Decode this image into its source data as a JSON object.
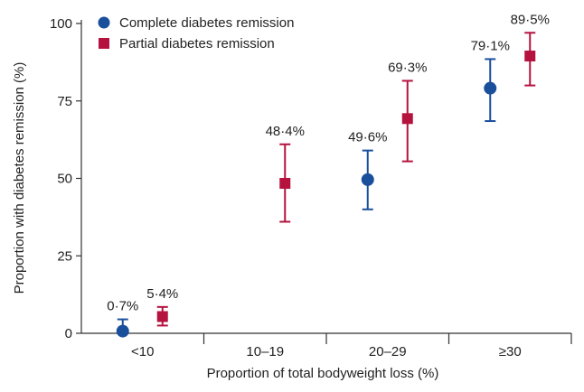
{
  "chart_data": {
    "type": "scatter",
    "title": "",
    "xlabel": "Proportion of total bodyweight loss (%)",
    "ylabel": "Proportion with diabetes remission (%)",
    "ylim": [
      0,
      100
    ],
    "y_ticks": [
      0,
      25,
      50,
      75,
      100
    ],
    "categories": [
      "<10",
      "10–19",
      "20–29",
      "≥30"
    ],
    "legend_position": "top-left",
    "series": [
      {
        "name": "Complete diabetes remission",
        "marker": "circle",
        "color": "#1a4f9c",
        "values": [
          0.7,
          null,
          49.6,
          79.1
        ],
        "lower": [
          0,
          null,
          40,
          68.5
        ],
        "upper": [
          4.5,
          null,
          59,
          88.5
        ],
        "labels": [
          "0·7%",
          null,
          "49·6%",
          "79·1%"
        ]
      },
      {
        "name": "Partial diabetes remission",
        "marker": "square",
        "color": "#b5123e",
        "values": [
          5.4,
          48.4,
          69.3,
          89.5
        ],
        "lower": [
          2.5,
          36,
          55.5,
          80
        ],
        "upper": [
          8.5,
          61,
          81.5,
          97
        ],
        "labels": [
          "5·4%",
          "48·4%",
          "69·3%",
          "89·5%"
        ]
      }
    ]
  }
}
